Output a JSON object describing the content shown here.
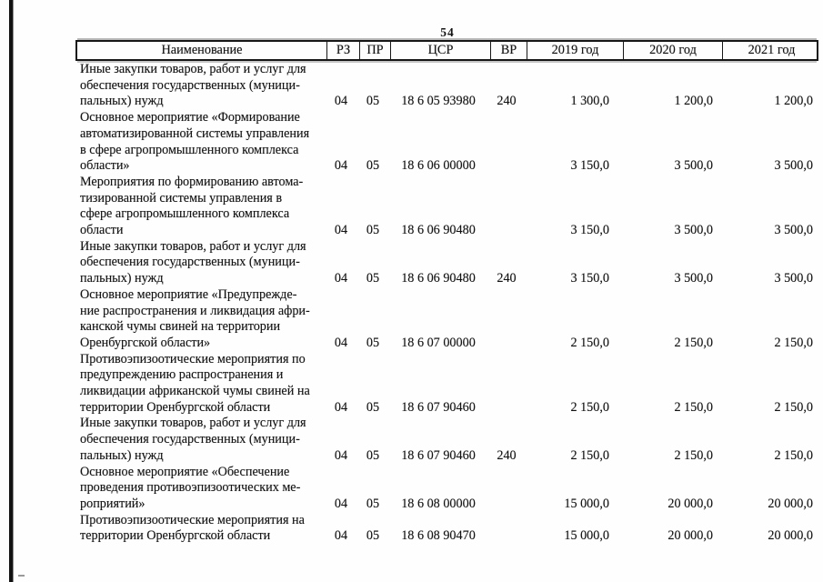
{
  "page": {
    "number": "54"
  },
  "colors": {
    "ink": "#141414",
    "border": "#161616",
    "scan_artifact": "#b9b9b9"
  },
  "table": {
    "headers": {
      "name": "Наименование",
      "rz": "РЗ",
      "pr": "ПР",
      "csr": "ЦСР",
      "vr": "ВР",
      "y2019": "2019 год",
      "y2020": "2020 год",
      "y2021": "2021 год"
    },
    "rows": [
      {
        "name": "Иные закупки товаров, работ и услуг для\nобеспечения государственных (муници-\nпальных) нужд",
        "rz": "04",
        "pr": "05",
        "csr": "18 6 05 93980",
        "vr": "240",
        "y2019": "1 300,0",
        "y2020": "1 200,0",
        "y2021": "1 200,0"
      },
      {
        "name": "Основное мероприятие «Формирование\nавтоматизированной системы управления\nв сфере агропромышленного комплекса\nобласти»",
        "rz": "04",
        "pr": "05",
        "csr": "18 6 06 00000",
        "vr": "",
        "y2019": "3 150,0",
        "y2020": "3 500,0",
        "y2021": "3 500,0"
      },
      {
        "name": "Мероприятия по формированию автома-\nтизированной системы управления в\nсфере агропромышленного комплекса\nобласти",
        "rz": "04",
        "pr": "05",
        "csr": "18 6 06 90480",
        "vr": "",
        "y2019": "3 150,0",
        "y2020": "3 500,0",
        "y2021": "3 500,0"
      },
      {
        "name": "Иные закупки товаров, работ и услуг для\nобеспечения государственных (муници-\nпальных) нужд",
        "rz": "04",
        "pr": "05",
        "csr": "18 6 06 90480",
        "vr": "240",
        "y2019": "3 150,0",
        "y2020": "3 500,0",
        "y2021": "3 500,0"
      },
      {
        "name": "Основное мероприятие «Предупрежде-\nние распространения и ликвидация афри-\nканской чумы свиней на территории\nОренбургской области»",
        "rz": "04",
        "pr": "05",
        "csr": "18 6 07 00000",
        "vr": "",
        "y2019": "2 150,0",
        "y2020": "2 150,0",
        "y2021": "2 150,0"
      },
      {
        "name": "Противоэпизоотические мероприятия по\nпредупреждению распространения и\nликвидации африканской чумы свиней на\nтерритории Оренбургской области",
        "rz": "04",
        "pr": "05",
        "csr": "18 6 07 90460",
        "vr": "",
        "y2019": "2 150,0",
        "y2020": "2 150,0",
        "y2021": "2 150,0"
      },
      {
        "name": "Иные закупки товаров, работ и услуг для\nобеспечения государственных (муници-\nпальных) нужд",
        "rz": "04",
        "pr": "05",
        "csr": "18 6 07 90460",
        "vr": "240",
        "y2019": "2 150,0",
        "y2020": "2 150,0",
        "y2021": "2 150,0"
      },
      {
        "name": "Основное мероприятие «Обеспечение\nпроведения противоэпизоотических ме-\nроприятий»",
        "rz": "04",
        "pr": "05",
        "csr": "18 6 08 00000",
        "vr": "",
        "y2019": "15 000,0",
        "y2020": "20 000,0",
        "y2021": "20 000,0"
      },
      {
        "name": "Противоэпизоотические мероприятия на\nтерритории Оренбургской области",
        "rz": "04",
        "pr": "05",
        "csr": "18 6 08 90470",
        "vr": "",
        "y2019": "15 000,0",
        "y2020": "20 000,0",
        "y2021": "20 000,0"
      }
    ]
  }
}
